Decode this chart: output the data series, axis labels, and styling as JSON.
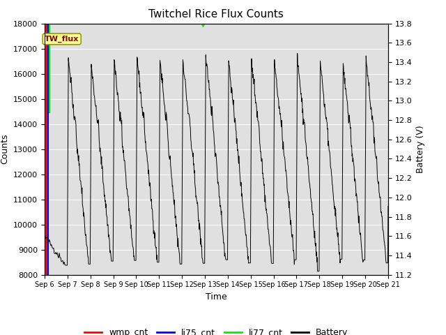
{
  "title": "Twitchel Rice Flux Counts",
  "xlabel": "Time",
  "ylabel_left": "Counts",
  "ylabel_right": "Battery (V)",
  "ylim_left": [
    8000,
    18000
  ],
  "ylim_right": [
    11.2,
    13.8
  ],
  "yticks_left": [
    8000,
    9000,
    10000,
    11000,
    12000,
    13000,
    14000,
    15000,
    16000,
    17000,
    18000
  ],
  "yticks_right": [
    11.2,
    11.4,
    11.6,
    11.8,
    12.0,
    12.2,
    12.4,
    12.6,
    12.8,
    13.0,
    13.2,
    13.4,
    13.6,
    13.8
  ],
  "xlim": [
    0,
    15
  ],
  "xtick_labels": [
    "Sep 6",
    "Sep 7",
    "Sep 8",
    "Sep 9",
    "Sep 10",
    "Sep 11",
    "Sep 12",
    "Sep 13",
    "Sep 14",
    "Sep 15",
    "Sep 16",
    "Sep 17",
    "Sep 18",
    "Sep 19",
    "Sep 20",
    "Sep 21"
  ],
  "xtick_positions": [
    0,
    1,
    2,
    3,
    4,
    5,
    6,
    7,
    8,
    9,
    10,
    11,
    12,
    13,
    14,
    15
  ],
  "annotation_text": "TW_flux",
  "bg_color": "#e0e0e0",
  "grid_color": "#ffffff",
  "li77_color": "#00ee00",
  "wmp_color": "#ff0000",
  "li75_color": "#0000ff",
  "battery_color": "#000000",
  "figsize": [
    6.4,
    4.8
  ],
  "dpi": 100
}
